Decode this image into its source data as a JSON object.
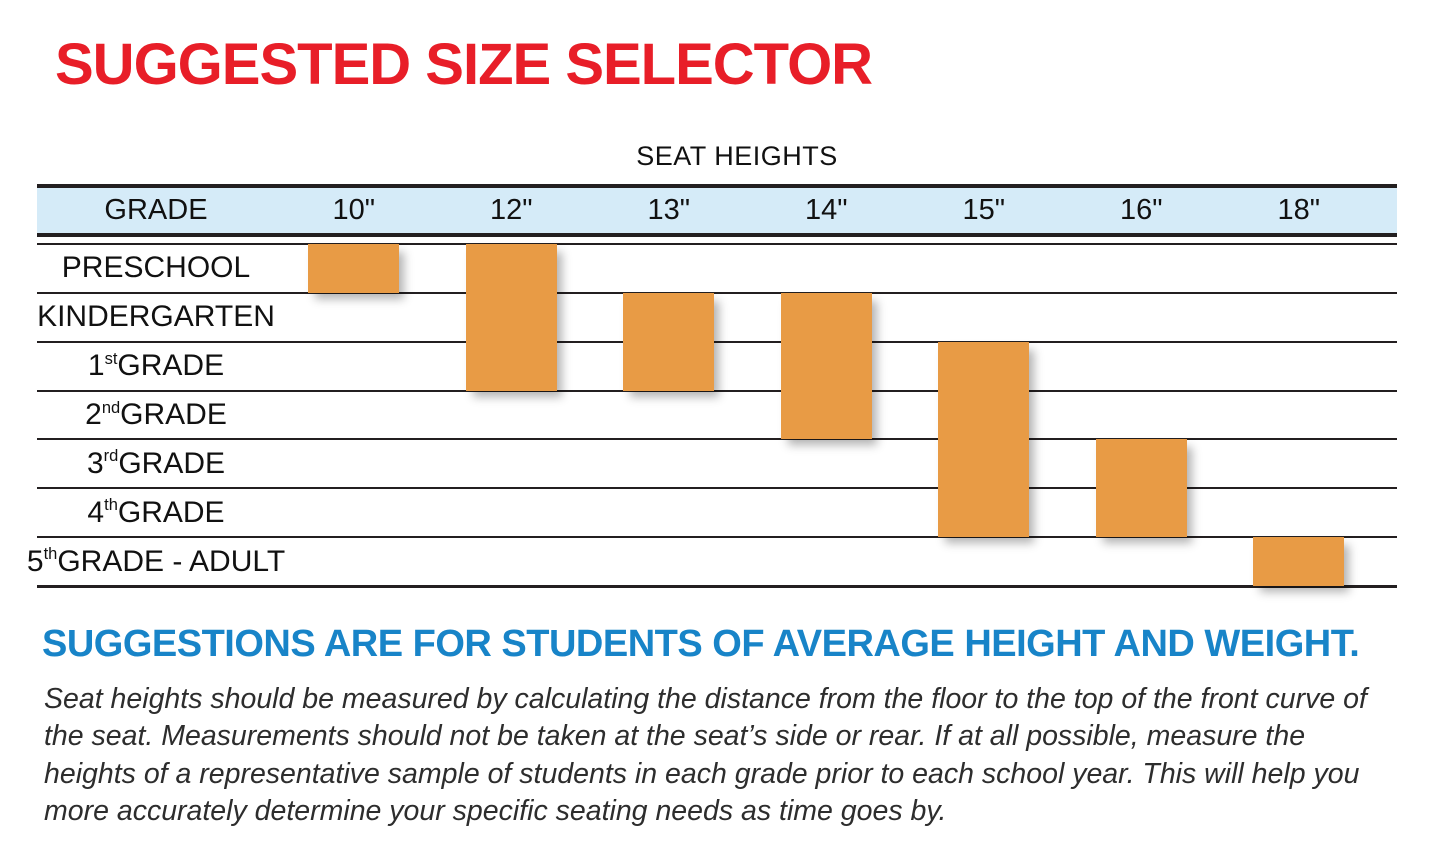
{
  "page": {
    "title": "SUGGESTED SIZE SELECTOR",
    "table_caption": "SEAT HEIGHTS"
  },
  "table": {
    "grade_header": "GRADE",
    "columns": [
      "10\"",
      "12\"",
      "13\"",
      "14\"",
      "15\"",
      "16\"",
      "18\""
    ],
    "rows": [
      {
        "label": "PRESCHOOL",
        "sup": "",
        "tail": ""
      },
      {
        "label": "KINDERGARTEN",
        "sup": "",
        "tail": ""
      },
      {
        "label": "1",
        "sup": "st",
        "tail": " GRADE"
      },
      {
        "label": "2",
        "sup": "nd",
        "tail": " GRADE"
      },
      {
        "label": "3",
        "sup": "rd",
        "tail": " GRADE"
      },
      {
        "label": "4",
        "sup": "th",
        "tail": " GRADE"
      },
      {
        "label": "5",
        "sup": "th",
        "tail": " GRADE - ADULT"
      }
    ],
    "bars": [
      {
        "col": 0,
        "from_row": 0,
        "to_row": 0
      },
      {
        "col": 1,
        "from_row": 0,
        "to_row": 2
      },
      {
        "col": 2,
        "from_row": 1,
        "to_row": 2
      },
      {
        "col": 3,
        "from_row": 1,
        "to_row": 3
      },
      {
        "col": 4,
        "from_row": 2,
        "to_row": 5
      },
      {
        "col": 5,
        "from_row": 4,
        "to_row": 5
      },
      {
        "col": 6,
        "from_row": 6,
        "to_row": 6
      }
    ]
  },
  "footer": {
    "heading": "SUGGESTIONS ARE FOR STUDENTS OF AVERAGE HEIGHT AND WEIGHT.",
    "body": "Seat heights should be measured by calculating the distance from the floor to the top of the front curve of the seat.  Measurements should not be taken at the seat’s side or rear.  If at all possible, measure the heights of a representative sample of students in each grade prior to each school year.  This will help you more accurately determine your specific seating needs as time goes by."
  },
  "colors": {
    "title_red": "#E81E28",
    "heading_blue": "#1884C8",
    "header_bg": "#D5EBF8",
    "bar_orange": "#E89B45",
    "line": "#231F20"
  },
  "chart_data": {
    "type": "table",
    "title": "SEAT HEIGHTS",
    "columns": [
      "10\"",
      "12\"",
      "13\"",
      "14\"",
      "15\"",
      "16\"",
      "18\""
    ],
    "grades": [
      "PRESCHOOL",
      "KINDERGARTEN",
      "1st GRADE",
      "2nd GRADE",
      "3rd GRADE",
      "4th GRADE",
      "5th GRADE - ADULT"
    ],
    "recommendations": [
      {
        "seat_height": "10\"",
        "grades": [
          "PRESCHOOL"
        ]
      },
      {
        "seat_height": "12\"",
        "grades": [
          "PRESCHOOL",
          "KINDERGARTEN",
          "1st GRADE"
        ]
      },
      {
        "seat_height": "13\"",
        "grades": [
          "KINDERGARTEN",
          "1st GRADE"
        ]
      },
      {
        "seat_height": "14\"",
        "grades": [
          "KINDERGARTEN",
          "1st GRADE",
          "2nd GRADE"
        ]
      },
      {
        "seat_height": "15\"",
        "grades": [
          "1st GRADE",
          "2nd GRADE",
          "3rd GRADE",
          "4th GRADE"
        ]
      },
      {
        "seat_height": "16\"",
        "grades": [
          "3rd GRADE",
          "4th GRADE"
        ]
      },
      {
        "seat_height": "18\"",
        "grades": [
          "5th GRADE - ADULT"
        ]
      }
    ],
    "legend_position": "none",
    "grid": true
  }
}
